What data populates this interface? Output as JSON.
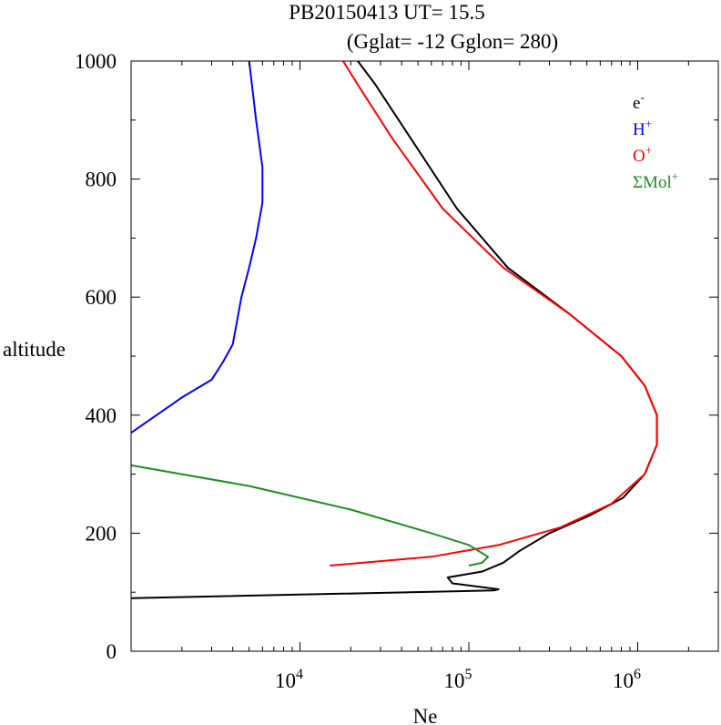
{
  "chart_data": {
    "type": "line",
    "title": "PB20150413   UT=  15.5",
    "subtitle": "(Gglat= -12   Gglon=  280)",
    "xlabel": "Ne",
    "ylabel": "altitude",
    "x_scale": "log",
    "xlim": [
      1000,
      3000000
    ],
    "ylim": [
      0,
      1000
    ],
    "x_ticks": [
      {
        "value": 10000,
        "base": "10",
        "exp": "4"
      },
      {
        "value": 100000,
        "base": "10",
        "exp": "5"
      },
      {
        "value": 1000000,
        "base": "10",
        "exp": "6"
      }
    ],
    "y_ticks": [
      "0",
      "200",
      "400",
      "600",
      "800",
      "1000"
    ],
    "legend_position": "top-right",
    "series": [
      {
        "name": "e",
        "sup": "-",
        "color": "#000000",
        "points": [
          [
            1000,
            90
          ],
          [
            140000,
            103
          ],
          [
            150000,
            105
          ],
          [
            80000,
            115
          ],
          [
            75000,
            125
          ],
          [
            120000,
            135
          ],
          [
            160000,
            150
          ],
          [
            200000,
            170
          ],
          [
            300000,
            200
          ],
          [
            520000,
            230
          ],
          [
            820000,
            260
          ],
          [
            1100000,
            300
          ],
          [
            1300000,
            350
          ],
          [
            1300000,
            400
          ],
          [
            1100000,
            450
          ],
          [
            800000,
            500
          ],
          [
            400000,
            570
          ],
          [
            170000,
            650
          ],
          [
            85000,
            750
          ],
          [
            45000,
            870
          ],
          [
            28000,
            960
          ],
          [
            22000,
            1010
          ]
        ]
      },
      {
        "name": "H",
        "sup": "+",
        "color": "#0000ff",
        "points": [
          [
            1000,
            370
          ],
          [
            2000,
            430
          ],
          [
            3000,
            460
          ],
          [
            3500,
            490
          ],
          [
            4000,
            520
          ],
          [
            4500,
            600
          ],
          [
            5000,
            650
          ],
          [
            5500,
            700
          ],
          [
            6000,
            760
          ],
          [
            6000,
            820
          ],
          [
            5500,
            900
          ],
          [
            5000,
            1010
          ]
        ]
      },
      {
        "name": "O",
        "sup": "+",
        "color": "#ff0000",
        "points": [
          [
            15000,
            145
          ],
          [
            60000,
            160
          ],
          [
            150000,
            180
          ],
          [
            350000,
            210
          ],
          [
            700000,
            250
          ],
          [
            1100000,
            300
          ],
          [
            1300000,
            350
          ],
          [
            1300000,
            400
          ],
          [
            1100000,
            450
          ],
          [
            800000,
            500
          ],
          [
            400000,
            570
          ],
          [
            160000,
            650
          ],
          [
            70000,
            750
          ],
          [
            35000,
            870
          ],
          [
            22000,
            960
          ],
          [
            18000,
            1010
          ]
        ]
      },
      {
        "name": "ΣMol",
        "sup": "+",
        "color": "#228b22",
        "points": [
          [
            1000,
            315
          ],
          [
            5000,
            280
          ],
          [
            20000,
            240
          ],
          [
            60000,
            200
          ],
          [
            100000,
            180
          ],
          [
            130000,
            160
          ],
          [
            120000,
            150
          ],
          [
            100000,
            145
          ]
        ]
      }
    ]
  }
}
